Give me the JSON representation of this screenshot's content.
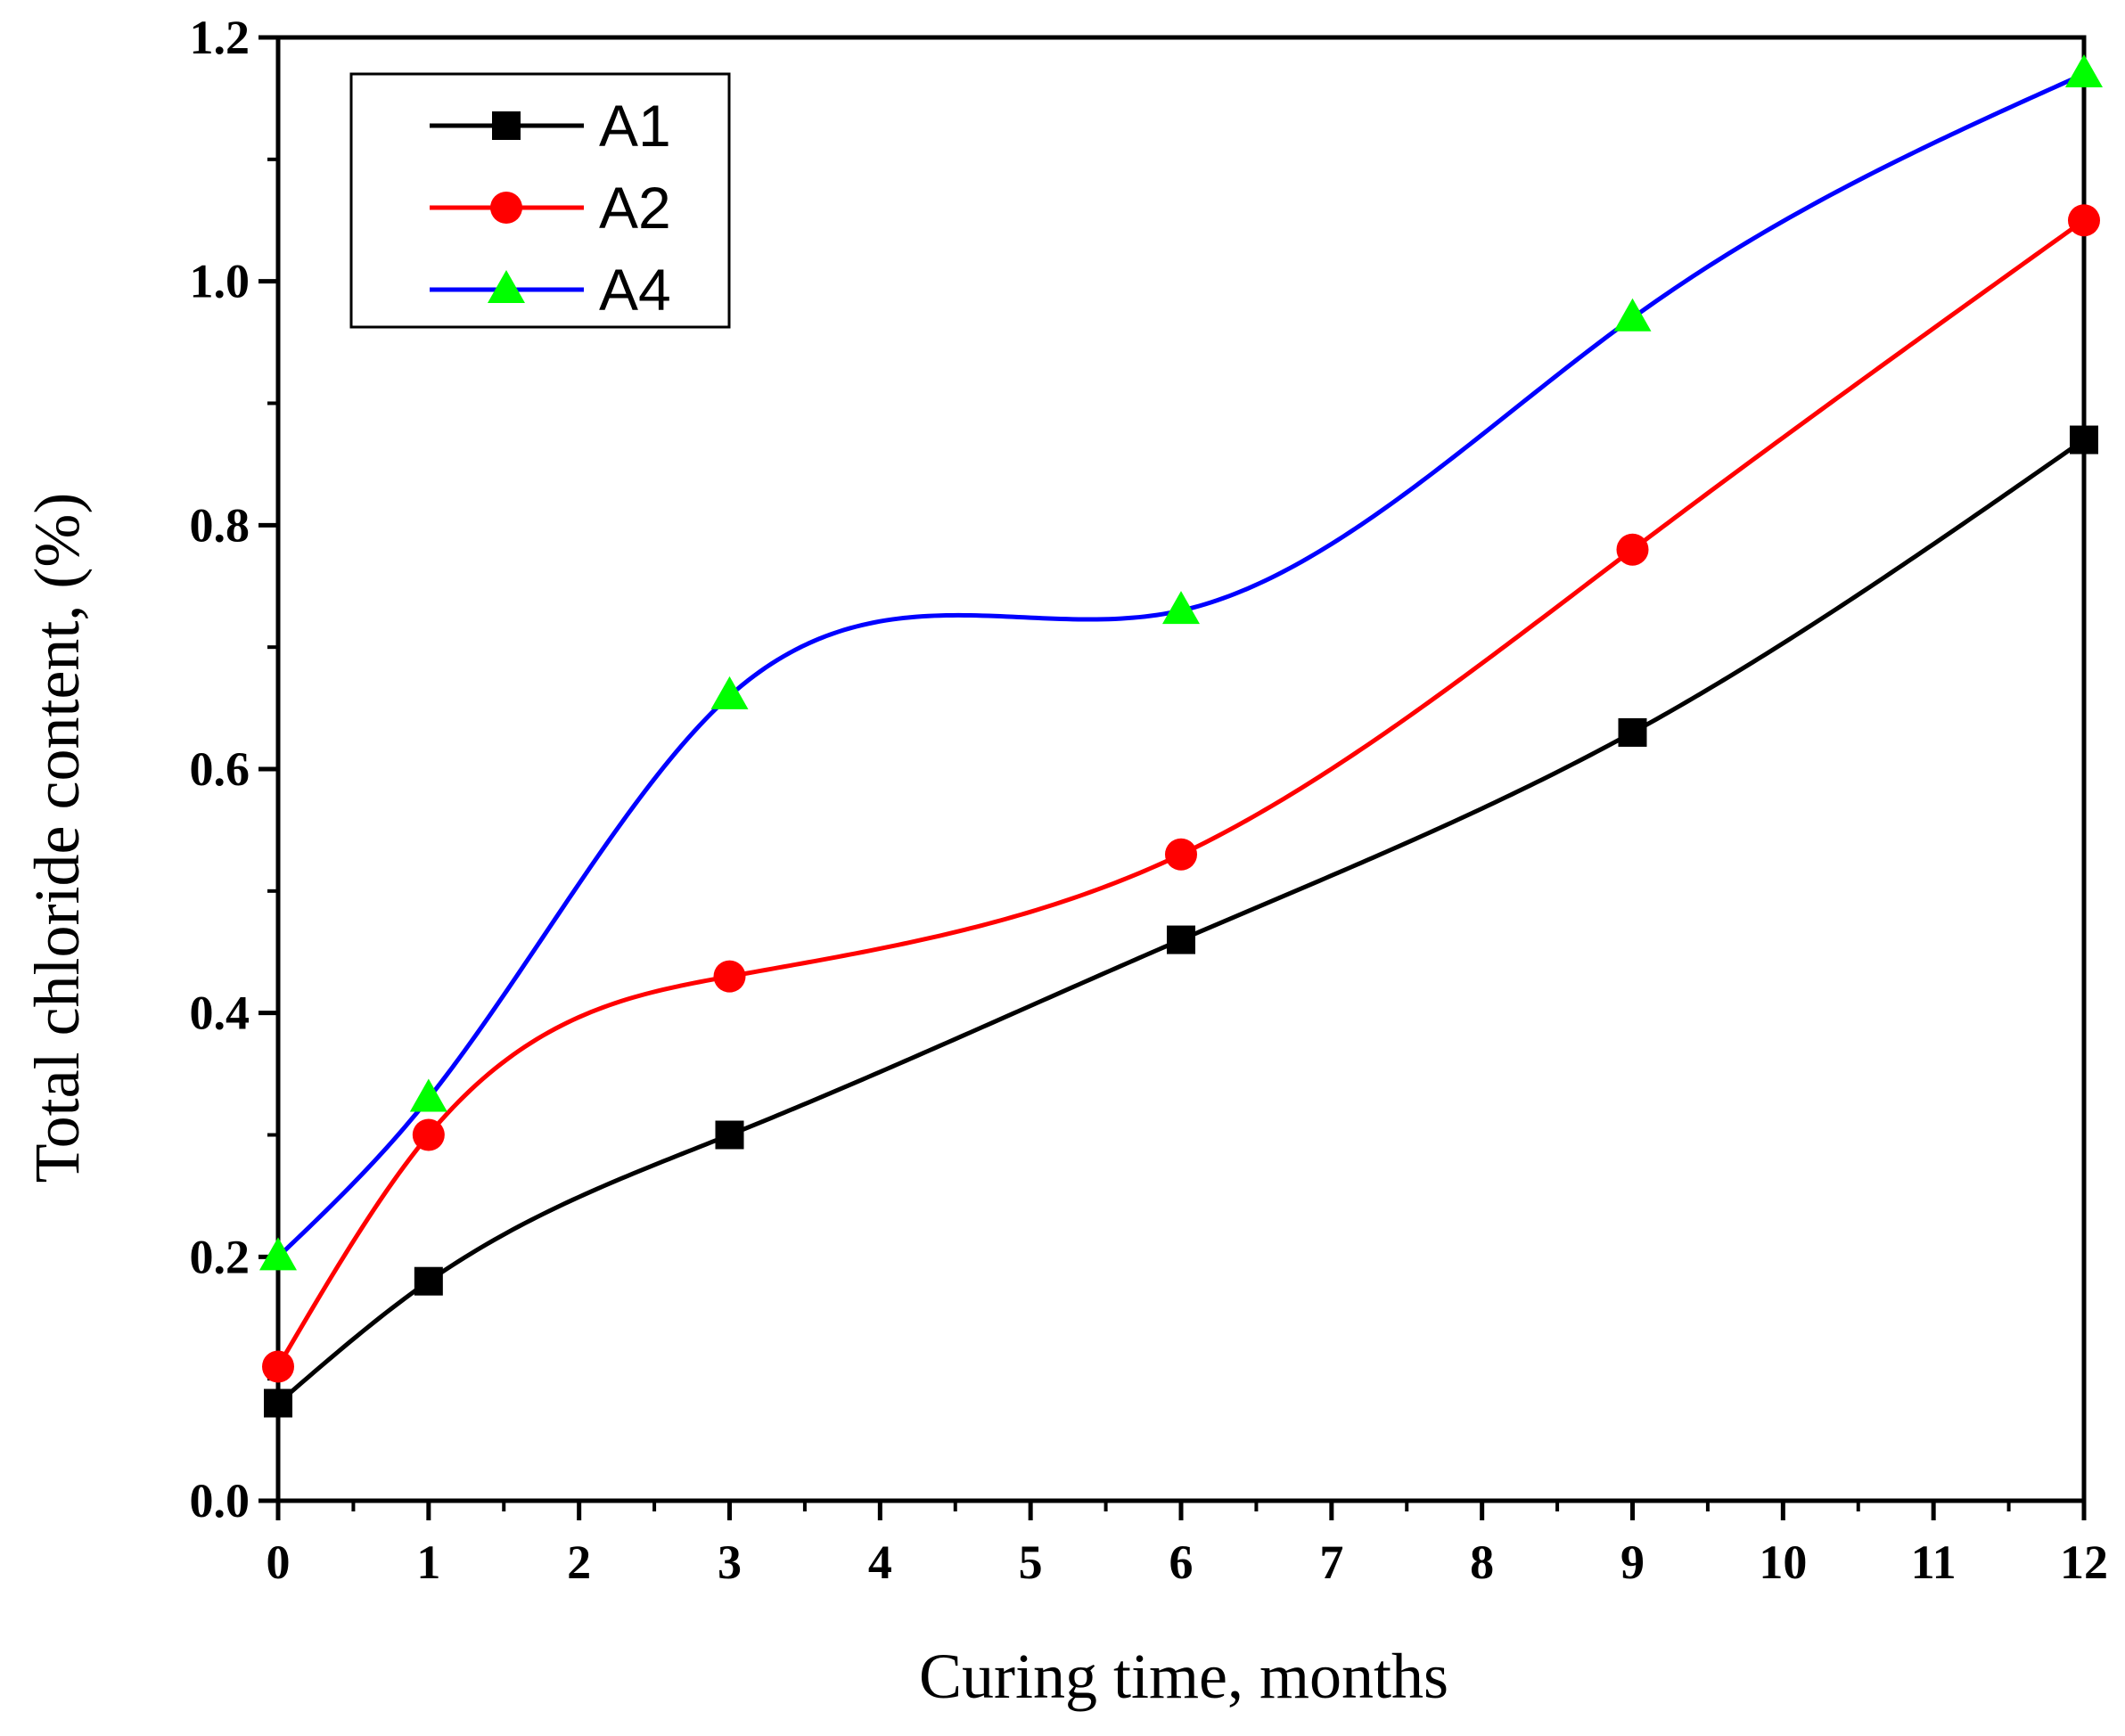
{
  "chart_data": {
    "type": "line",
    "title": "",
    "xlabel": "Curing time, months",
    "ylabel": "Total chloride content, (%)",
    "xlim": [
      0,
      12
    ],
    "ylim": [
      0.0,
      1.2
    ],
    "x_ticks": [
      "0",
      "1",
      "2",
      "3",
      "4",
      "5",
      "6",
      "7",
      "8",
      "9",
      "10",
      "11",
      "12"
    ],
    "y_ticks": [
      "0.0",
      "0.2",
      "0.4",
      "0.6",
      "0.8",
      "1.0",
      "1.2"
    ],
    "grid": false,
    "legend_position": "top-left",
    "x": [
      0,
      1,
      3,
      6,
      9,
      12
    ],
    "series": [
      {
        "name": "A1",
        "marker": "square",
        "line_color": "#000000",
        "marker_color": "#000000",
        "values": [
          0.08,
          0.18,
          0.3,
          0.46,
          0.63,
          0.87
        ]
      },
      {
        "name": "A2",
        "marker": "circle",
        "line_color": "#ff0000",
        "marker_color": "#ff0000",
        "values": [
          0.11,
          0.3,
          0.43,
          0.53,
          0.78,
          1.05
        ]
      },
      {
        "name": "A4",
        "marker": "triangle",
        "line_color": "#0000ff",
        "marker_color": "#00ff00",
        "values": [
          0.2,
          0.33,
          0.66,
          0.73,
          0.97,
          1.17
        ]
      }
    ]
  }
}
